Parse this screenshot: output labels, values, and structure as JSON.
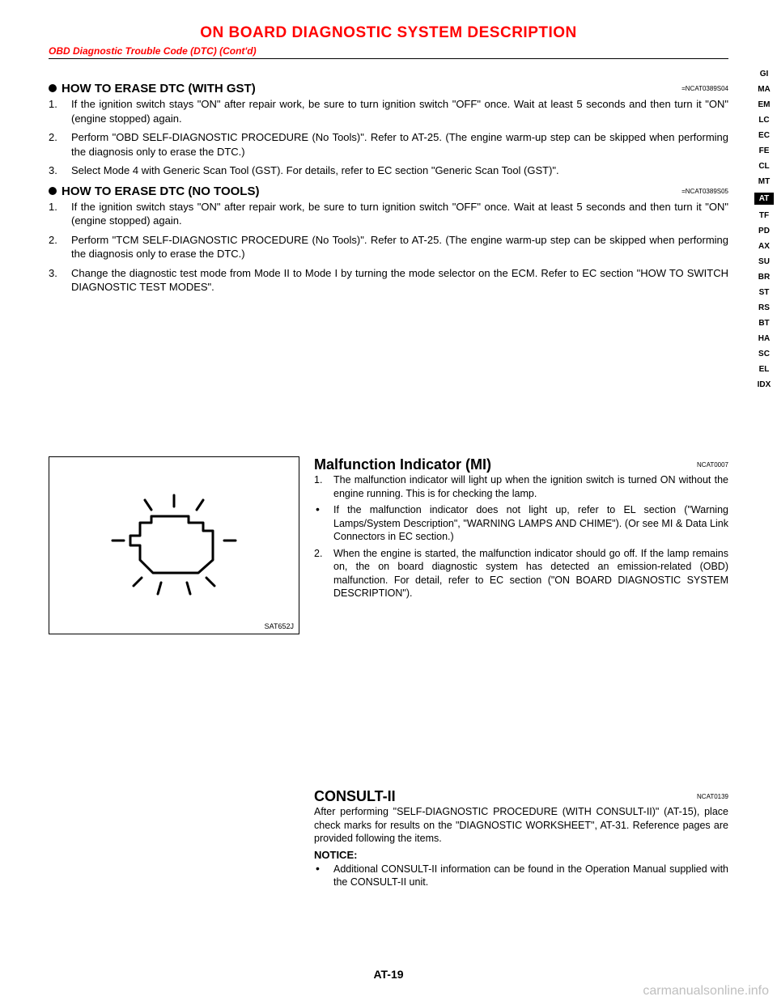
{
  "header": {
    "title": "ON BOARD DIAGNOSTIC SYSTEM DESCRIPTION",
    "subtitle": "OBD Diagnostic Trouble Code (DTC) (Cont'd)",
    "title_color": "#ff0000"
  },
  "section_gst": {
    "heading": "HOW TO ERASE DTC (WITH GST)",
    "ref": "=NCAT0389S04",
    "steps": [
      "If the ignition switch stays \"ON\" after repair work, be sure to turn ignition switch \"OFF\" once. Wait at least 5 seconds and then turn it \"ON\" (engine stopped) again.",
      "Perform \"OBD SELF-DIAGNOSTIC PROCEDURE (No Tools)\". Refer to AT-25. (The engine warm-up step can be skipped when performing the diagnosis only to erase the DTC.)",
      "Select Mode 4 with Generic Scan Tool (GST). For details, refer to EC section \"Generic Scan Tool (GST)\"."
    ]
  },
  "section_notools": {
    "heading": "HOW TO ERASE DTC (NO TOOLS)",
    "ref": "=NCAT0389S05",
    "steps": [
      "If the ignition switch stays \"ON\" after repair work, be sure to turn ignition switch \"OFF\" once. Wait at least 5 seconds and then turn it \"ON\" (engine stopped) again.",
      "Perform \"TCM SELF-DIAGNOSTIC PROCEDURE (No Tools)\". Refer to AT-25. (The engine warm-up step can be skipped when performing the diagnosis only to erase the DTC.)",
      "Change the diagnostic test mode from Mode II to Mode I by turning the mode selector on the ECM. Refer to EC section \"HOW TO SWITCH DIAGNOSTIC TEST MODES\"."
    ]
  },
  "figure": {
    "label": "SAT652J",
    "stroke": "#000000",
    "stroke_width": 3
  },
  "mi": {
    "title": "Malfunction Indicator (MI)",
    "ref": "NCAT0007",
    "items": [
      {
        "type": "num",
        "text": "The malfunction indicator will light up when the ignition switch is turned ON without the engine running. This is for checking the lamp."
      },
      {
        "type": "dot",
        "text": "If the malfunction indicator does not light up, refer to EL section (\"Warning Lamps/System Description\", \"WARNING LAMPS AND CHIME\").\n(Or see MI & Data Link Connectors in EC section.)"
      },
      {
        "type": "num",
        "text": "When the engine is started, the malfunction indicator should go off.\nIf the lamp remains on, the on board diagnostic system has detected an emission-related (OBD) malfunction. For detail, refer to EC section (\"ON BOARD DIAGNOSTIC SYSTEM DESCRIPTION\")."
      }
    ]
  },
  "consult": {
    "title": "CONSULT-II",
    "ref": "NCAT0139",
    "para": "After performing \"SELF-DIAGNOSTIC PROCEDURE (WITH CONSULT-II)\" (AT-15), place check marks for results on the \"DIAGNOSTIC WORKSHEET\", AT-31. Reference pages are provided following the items.",
    "notice_label": "NOTICE:",
    "notice": "Additional CONSULT-II information can be found in the Operation Manual supplied with the CONSULT-II unit."
  },
  "side_tabs": [
    "GI",
    "MA",
    "EM",
    "LC",
    "EC",
    "FE",
    "CL",
    "MT",
    "AT",
    "TF",
    "PD",
    "AX",
    "SU",
    "BR",
    "ST",
    "RS",
    "BT",
    "HA",
    "SC",
    "EL",
    "IDX"
  ],
  "active_tab": "AT",
  "page_num": "AT-19",
  "watermark": "carmanualsonline.info"
}
